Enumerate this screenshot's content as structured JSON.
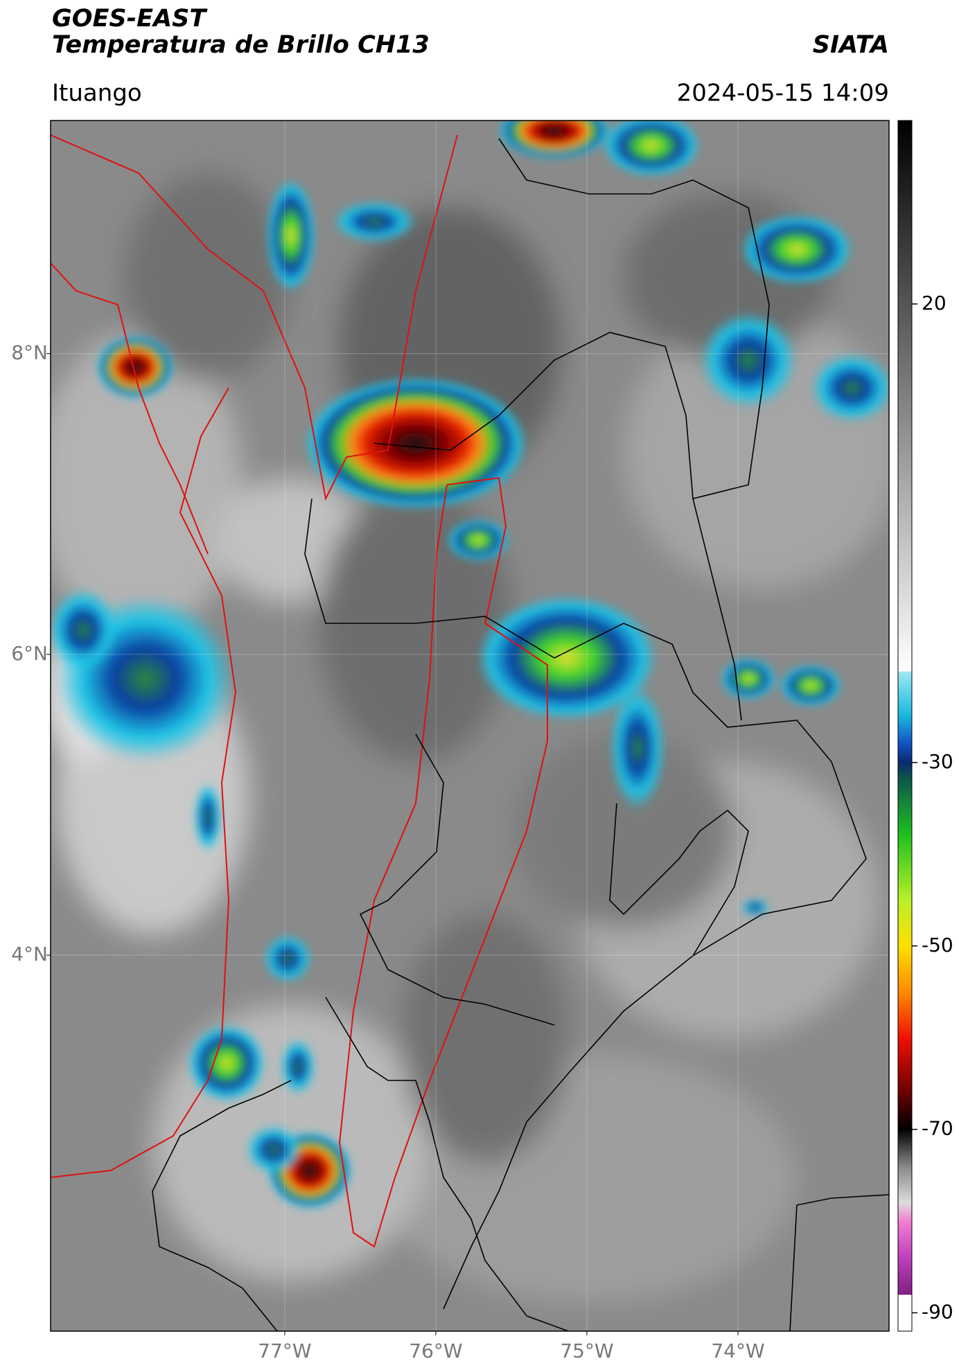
{
  "header": {
    "title": "GOES-EAST",
    "subtitle": "Temperatura de Brillo CH13",
    "agency": "SIATA",
    "location": "Ituango",
    "timestamp": "2024-05-15 14:09"
  },
  "map": {
    "xlim": [
      -78.55,
      -73.0
    ],
    "ylim": [
      1.5,
      9.55
    ],
    "xticks": [
      {
        "value": -77,
        "label": "77°W"
      },
      {
        "value": -76,
        "label": "76°W"
      },
      {
        "value": -75,
        "label": "75°W"
      },
      {
        "value": -74,
        "label": "74°W"
      }
    ],
    "yticks": [
      {
        "value": 8,
        "label": "8°N"
      },
      {
        "value": 6,
        "label": "6°N"
      },
      {
        "value": 4,
        "label": "4°N"
      }
    ],
    "grid": true
  },
  "colorbar": {
    "lim": [
      -92,
      40
    ],
    "ticks": [
      20,
      -30,
      -50,
      -70,
      -90
    ]
  }
}
